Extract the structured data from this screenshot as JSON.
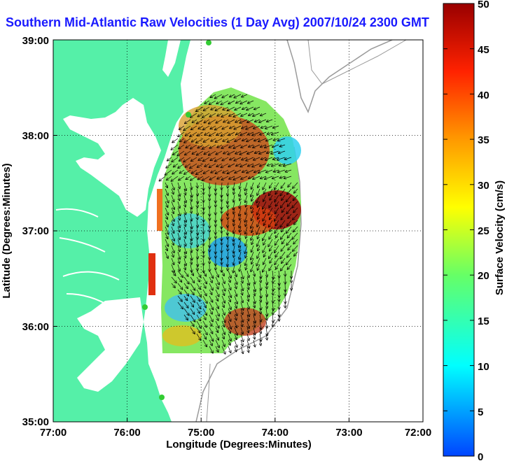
{
  "title": "Southern Mid-Atlantic Raw Velocities (1 Day Avg) 2007/10/24 2300 GMT",
  "xaxis": {
    "label": "Longitude (Degrees:Minutes)",
    "ticks": [
      "77:00",
      "76:00",
      "75:00",
      "74:00",
      "73:00",
      "72:00"
    ],
    "range_deg_west": [
      77,
      72
    ]
  },
  "yaxis": {
    "label": "Latitude (Degrees:Minutes)",
    "ticks": [
      "39:00",
      "38:00",
      "37:00",
      "36:00",
      "35:00"
    ],
    "range_deg_north": [
      35,
      39
    ]
  },
  "colorbar": {
    "label": "Surface Velocity (cm/s)",
    "ticks": [
      "50",
      "45",
      "40",
      "35",
      "30",
      "25",
      "20",
      "15",
      "10",
      "5",
      "0"
    ],
    "min": 0,
    "max": 50
  },
  "colors": {
    "land": "#55f0a8",
    "ocean": "#ffffff",
    "title": "#1a1aff",
    "station_marker": "#33cc33",
    "bathymetry_contour": "#9a9a9a"
  }
}
